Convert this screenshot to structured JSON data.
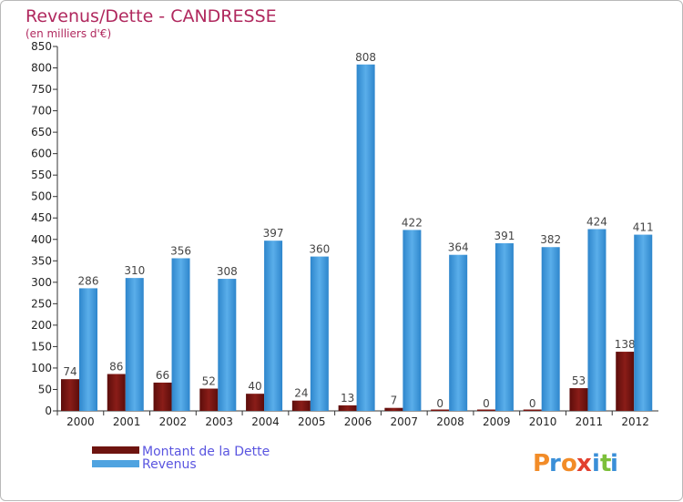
{
  "chart_data": {
    "type": "bar",
    "title": "Revenus/Dette - CANDRESSE",
    "subtitle": "(en milliers d'€)",
    "categories": [
      "2000",
      "2001",
      "2002",
      "2003",
      "2004",
      "2005",
      "2006",
      "2007",
      "2008",
      "2009",
      "2010",
      "2011",
      "2012"
    ],
    "series": [
      {
        "name": "Montant de la Dette",
        "color": "#7a1410",
        "values": [
          74,
          86,
          66,
          52,
          40,
          24,
          13,
          7,
          0,
          0,
          0,
          53,
          138
        ]
      },
      {
        "name": "Revenus",
        "color": "#4fa3e0",
        "values": [
          286,
          310,
          356,
          308,
          397,
          360,
          808,
          422,
          364,
          391,
          382,
          424,
          411
        ]
      }
    ],
    "ylim": [
      0,
      850
    ],
    "ytick_step": 50,
    "grid": false,
    "legend_position": "bottom-left"
  },
  "logo": {
    "letters": [
      "P",
      "r",
      "o",
      "x",
      "i",
      "t",
      "i"
    ],
    "colors": [
      "#f28c28",
      "#3a8fd8",
      "#f28c28",
      "#e2402f",
      "#3a8fd8",
      "#7cbf3a",
      "#3a8fd8"
    ]
  }
}
